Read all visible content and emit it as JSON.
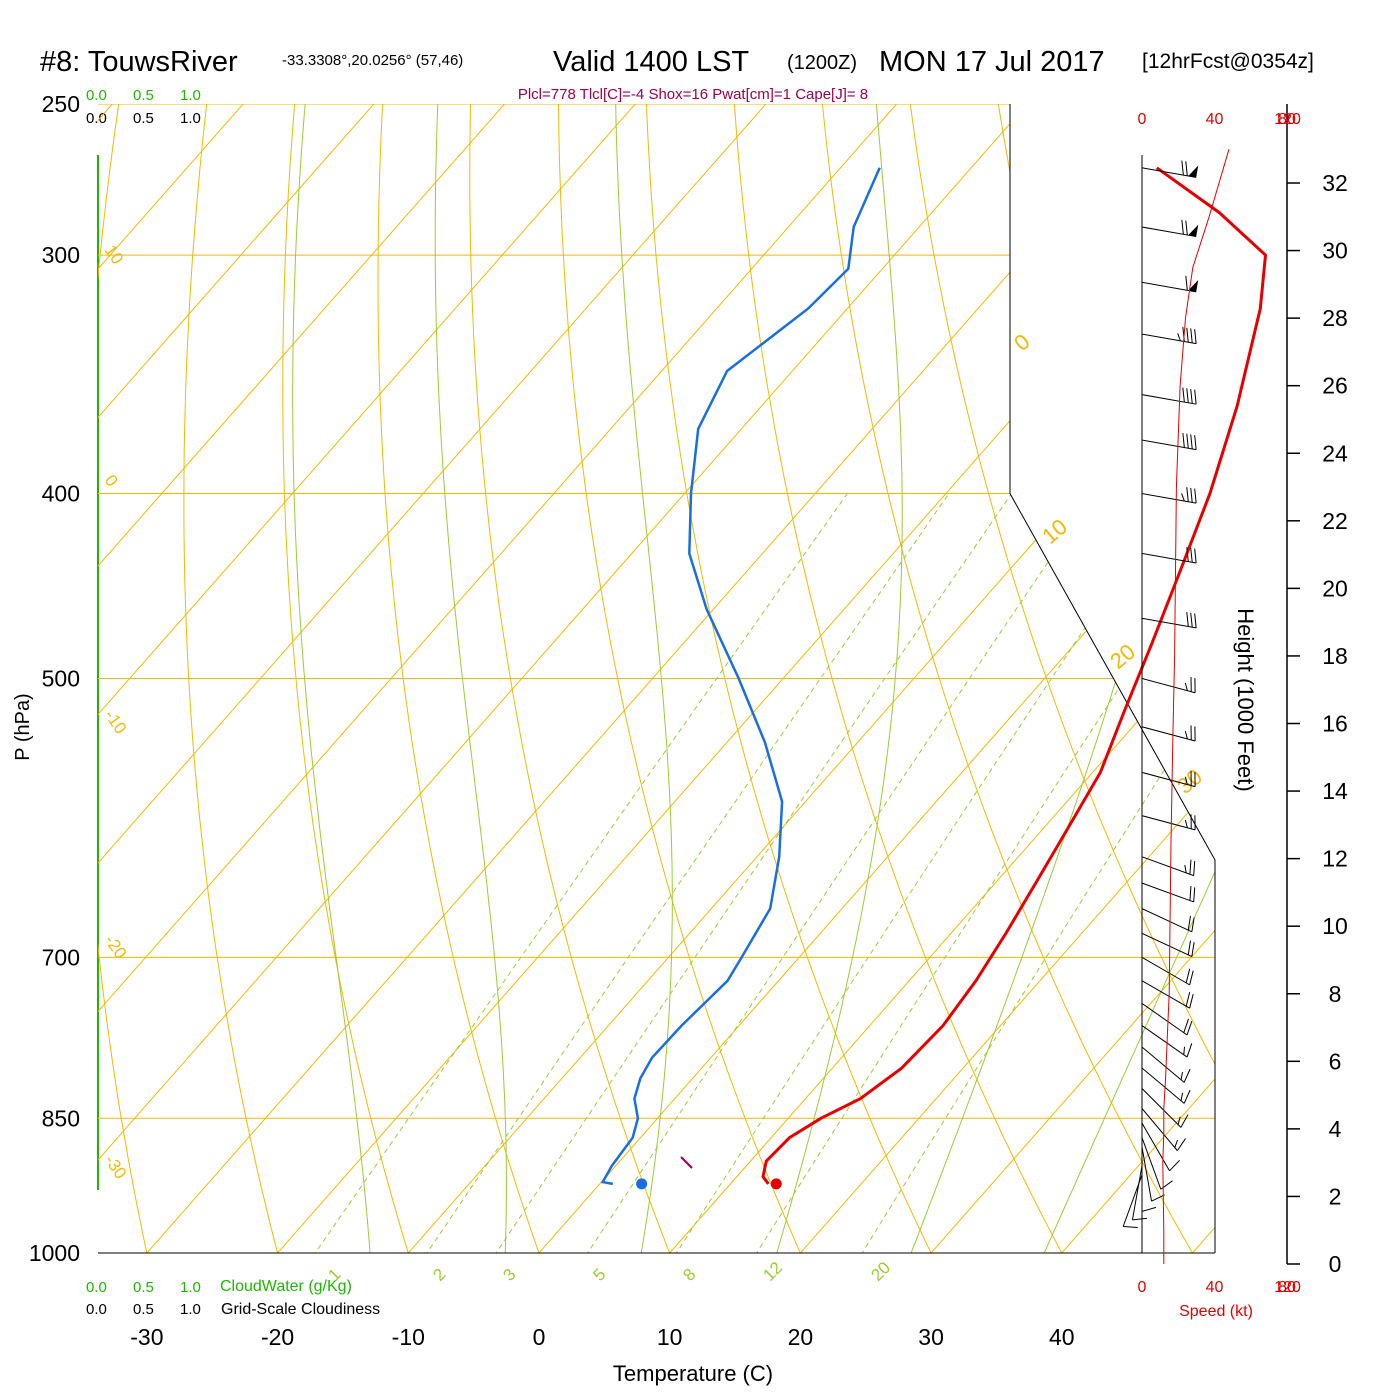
{
  "header": {
    "station": "#8: TouwsRiver",
    "coords": "-33.3308°,20.0256° (57,46)",
    "valid": "Valid 1400 LST",
    "utc": "(1200Z)",
    "date": "MON 17 Jul 2017",
    "forecast": "[12hrFcst@0354z]",
    "indices": "Plcl=778 Tlcl[C]=-4 Shox=16 Pwat[cm]=1 Cape[J]= 8"
  },
  "colors": {
    "isobar": "#f5b800",
    "isotherm": "#f5b800",
    "dry_adiabat": "#f5b800",
    "moist_adiabat": "#9acd32",
    "mixing_ratio": "#9acd32",
    "temperature": "#e60000",
    "dewpoint": "#1a6fe0",
    "cloud_water": "#1db800",
    "speed": "#e60000",
    "indices": "#a0004a"
  },
  "legend": {
    "cloud_scale_green": [
      "0.0",
      "0.5",
      "1.0"
    ],
    "cloud_scale_black": [
      "0.0",
      "0.5",
      "1.0"
    ],
    "cloud_water_label": "CloudWater (g/Kg)",
    "cloudiness_label": "Grid-Scale Cloudiness",
    "speed_label": "Speed (kt)"
  },
  "chart_data": {
    "type": "line",
    "subtype": "skew-t log-p sounding",
    "xlabel": "Temperature (C)",
    "ylabel": "P (hPa)",
    "height_label": "Height (1000 Feet)",
    "x_ticks": [
      "-30",
      "-20",
      "-10",
      "0",
      "10",
      "20",
      "30",
      "40"
    ],
    "p_ticks": [
      "250",
      "300",
      "400",
      "500",
      "700",
      "850",
      "1000"
    ],
    "height_ticks": [
      "0",
      "2",
      "4",
      "6",
      "8",
      "10",
      "12",
      "14",
      "16",
      "18",
      "20",
      "22",
      "24",
      "26",
      "28",
      "30",
      "32"
    ],
    "speed_ticks": [
      "0",
      "40",
      "80",
      "120"
    ],
    "xlim": [
      -30,
      40
    ],
    "plim": [
      1000,
      250
    ],
    "mixing_ratio_labels": [
      "1",
      "2",
      "3",
      "5",
      "8",
      "12",
      "20"
    ],
    "dry_adiabat_labels": [
      "10",
      "0",
      "-10",
      "-20",
      "-30"
    ],
    "moist_adiabat_labels": [
      "0",
      "10",
      "20",
      "30"
    ],
    "series": [
      {
        "name": "Temperature",
        "points": [
          [
            12.9,
            920
          ],
          [
            12.0,
            912
          ],
          [
            11.2,
            895
          ],
          [
            11.4,
            870
          ],
          [
            12.5,
            850
          ],
          [
            14.2,
            830
          ],
          [
            15.3,
            800
          ],
          [
            15.6,
            760
          ],
          [
            15.1,
            720
          ],
          [
            14.2,
            680
          ],
          [
            13.1,
            640
          ],
          [
            11.9,
            600
          ],
          [
            10.6,
            560
          ],
          [
            8.3,
            520
          ],
          [
            5.9,
            480
          ],
          [
            3.2,
            440
          ],
          [
            0.2,
            400
          ],
          [
            -3.6,
            360
          ],
          [
            -8.4,
            320
          ],
          [
            -11.6,
            300
          ],
          [
            -18.0,
            285
          ],
          [
            -25.8,
            270
          ]
        ]
      },
      {
        "name": "Dewpoint",
        "points": [
          [
            1.0,
            920
          ],
          [
            0.1,
            918
          ],
          [
            -0.3,
            900
          ],
          [
            -0.6,
            870
          ],
          [
            -1.5,
            850
          ],
          [
            -3.1,
            830
          ],
          [
            -4.0,
            810
          ],
          [
            -4.5,
            790
          ],
          [
            -4.4,
            760
          ],
          [
            -3.9,
            720
          ],
          [
            -4.4,
            700
          ],
          [
            -5.5,
            660
          ],
          [
            -8.3,
            620
          ],
          [
            -11.8,
            580
          ],
          [
            -17.1,
            540
          ],
          [
            -23.4,
            500
          ],
          [
            -30.5,
            460
          ],
          [
            -35.6,
            430
          ],
          [
            -39.5,
            400
          ],
          [
            -43.3,
            370
          ],
          [
            -45.0,
            345
          ],
          [
            -43.0,
            320
          ],
          [
            -42.6,
            305
          ],
          [
            -45.0,
            290
          ],
          [
            -47.0,
            270
          ]
        ]
      },
      {
        "name": "Speed",
        "points": [
          [
            12,
            0
          ],
          [
            12,
            1.0
          ],
          [
            11.5,
            3.0
          ],
          [
            12,
            3.9
          ],
          [
            12,
            4.6
          ],
          [
            13,
            5.5
          ],
          [
            14,
            6.8
          ],
          [
            15,
            8.0
          ],
          [
            16,
            12.5
          ],
          [
            17,
            15.5
          ],
          [
            18,
            18.0
          ],
          [
            19,
            23.0
          ],
          [
            21,
            26.0
          ],
          [
            24,
            28.0
          ],
          [
            28,
            29.5
          ],
          [
            37,
            31.0
          ],
          [
            48,
            33.0
          ]
        ]
      }
    ],
    "surface_temperature": 13.5,
    "surface_dewpoint": 3.2,
    "surface_pressure": 920,
    "wind_barbs": [
      {
        "pressure": 270,
        "direction": 280,
        "speed_kt": 70
      },
      {
        "pressure": 290,
        "direction": 280,
        "speed_kt": 70
      },
      {
        "pressure": 310,
        "direction": 280,
        "speed_kt": 60
      },
      {
        "pressure": 330,
        "direction": 280,
        "speed_kt": 45
      },
      {
        "pressure": 355,
        "direction": 280,
        "speed_kt": 40
      },
      {
        "pressure": 375,
        "direction": 280,
        "speed_kt": 40
      },
      {
        "pressure": 400,
        "direction": 280,
        "speed_kt": 35
      },
      {
        "pressure": 430,
        "direction": 280,
        "speed_kt": 30
      },
      {
        "pressure": 465,
        "direction": 280,
        "speed_kt": 30
      },
      {
        "pressure": 500,
        "direction": 285,
        "speed_kt": 25
      },
      {
        "pressure": 530,
        "direction": 285,
        "speed_kt": 25
      },
      {
        "pressure": 560,
        "direction": 285,
        "speed_kt": 25
      },
      {
        "pressure": 590,
        "direction": 285,
        "speed_kt": 25
      },
      {
        "pressure": 620,
        "direction": 290,
        "speed_kt": 25
      },
      {
        "pressure": 640,
        "direction": 290,
        "speed_kt": 20
      },
      {
        "pressure": 660,
        "direction": 295,
        "speed_kt": 20
      },
      {
        "pressure": 680,
        "direction": 295,
        "speed_kt": 20
      },
      {
        "pressure": 700,
        "direction": 300,
        "speed_kt": 20
      },
      {
        "pressure": 720,
        "direction": 300,
        "speed_kt": 20
      },
      {
        "pressure": 740,
        "direction": 305,
        "speed_kt": 20
      },
      {
        "pressure": 760,
        "direction": 305,
        "speed_kt": 15
      },
      {
        "pressure": 780,
        "direction": 310,
        "speed_kt": 15
      },
      {
        "pressure": 800,
        "direction": 310,
        "speed_kt": 15
      },
      {
        "pressure": 820,
        "direction": 315,
        "speed_kt": 15
      },
      {
        "pressure": 840,
        "direction": 320,
        "speed_kt": 15
      },
      {
        "pressure": 855,
        "direction": 330,
        "speed_kt": 10
      },
      {
        "pressure": 870,
        "direction": 340,
        "speed_kt": 10
      },
      {
        "pressure": 880,
        "direction": 350,
        "speed_kt": 10
      },
      {
        "pressure": 890,
        "direction": 0,
        "speed_kt": 10
      },
      {
        "pressure": 900,
        "direction": 10,
        "speed_kt": 10
      },
      {
        "pressure": 910,
        "direction": 20,
        "speed_kt": 10
      }
    ]
  }
}
